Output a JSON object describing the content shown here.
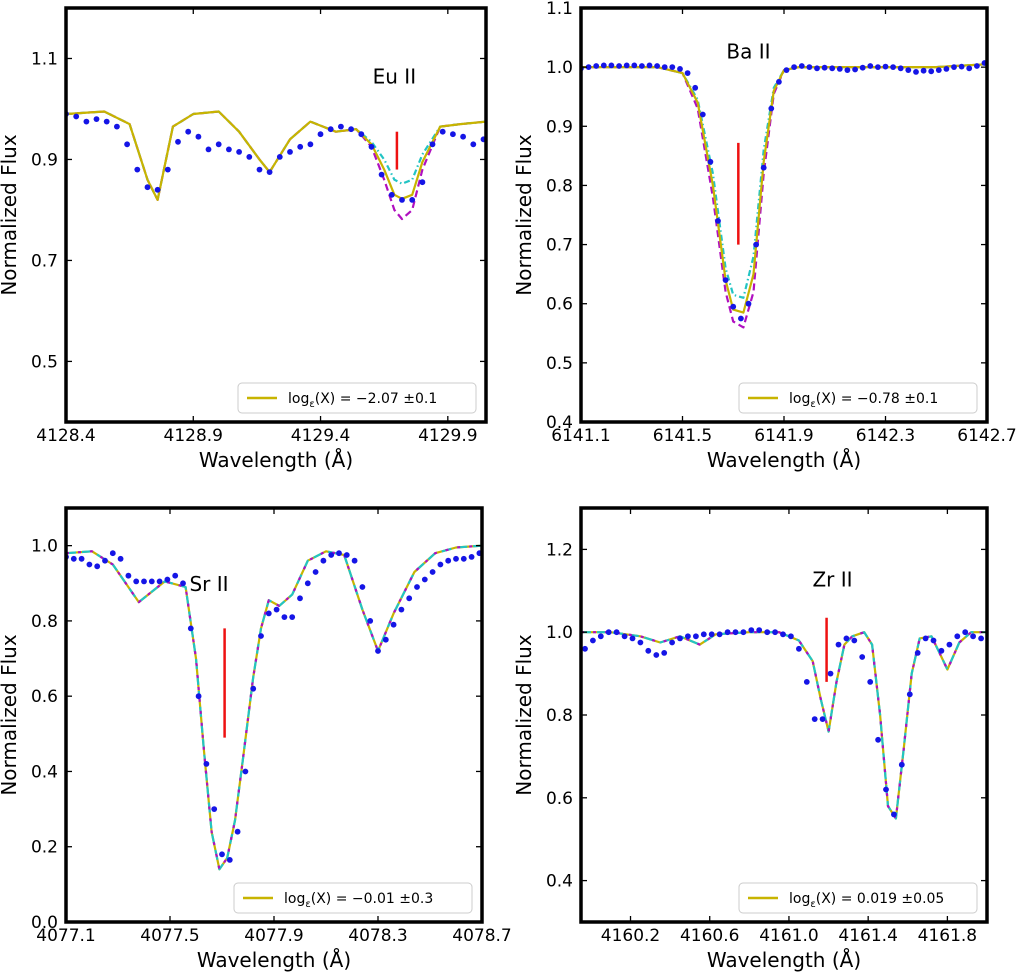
{
  "colors": {
    "obs": "#1515e6",
    "fit": "#c8b400",
    "upper": "#22c4c4",
    "lower": "#b010c0",
    "marker": "#ee1111"
  },
  "chart_data": [
    {
      "type": "line",
      "element_label": "Eu II",
      "xlabel": "Wavelength (Å)",
      "ylabel": "Normalized Flux",
      "xlim": [
        4128.4,
        4130.05
      ],
      "ylim": [
        0.38,
        1.2
      ],
      "xticks": [
        "4128.4",
        "4128.9",
        "4129.4",
        "4129.9"
      ],
      "xtick_values": [
        4128.4,
        4128.9,
        4129.4,
        4129.9
      ],
      "yticks": [
        "0.5",
        "0.7",
        "0.9",
        "1.1"
      ],
      "ytick_values": [
        0.5,
        0.7,
        0.9,
        1.1
      ],
      "legend": {
        "prefix": "log",
        "sub": "ε",
        "rest": "(X) = −2.07 ±0.1"
      },
      "line_marker": {
        "x": 4129.7,
        "y": [
          0.88,
          0.955
        ]
      },
      "model": {
        "x": [
          4128.4,
          4128.55,
          4128.65,
          4128.72,
          4128.76,
          4128.82,
          4128.9,
          4129.0,
          4129.08,
          4129.16,
          4129.2,
          4129.28,
          4129.36,
          4129.46,
          4129.54,
          4129.6,
          4129.65,
          4129.69,
          4129.72,
          4129.76,
          4129.8,
          4129.87,
          4129.95,
          4130.05
        ],
        "fit": [
          0.99,
          0.995,
          0.97,
          0.86,
          0.82,
          0.965,
          0.99,
          0.995,
          0.955,
          0.9,
          0.875,
          0.94,
          0.975,
          0.955,
          0.96,
          0.93,
          0.88,
          0.83,
          0.822,
          0.83,
          0.895,
          0.965,
          0.97,
          0.975
        ],
        "upper": [
          0.99,
          0.995,
          0.97,
          0.86,
          0.82,
          0.965,
          0.99,
          0.995,
          0.955,
          0.9,
          0.875,
          0.94,
          0.975,
          0.955,
          0.96,
          0.935,
          0.9,
          0.86,
          0.852,
          0.86,
          0.91,
          0.965,
          0.97,
          0.975
        ],
        "lower": [
          0.99,
          0.995,
          0.97,
          0.86,
          0.82,
          0.965,
          0.99,
          0.995,
          0.955,
          0.9,
          0.875,
          0.94,
          0.975,
          0.955,
          0.96,
          0.925,
          0.86,
          0.8,
          0.782,
          0.8,
          0.88,
          0.965,
          0.97,
          0.975
        ]
      },
      "observed": {
        "x": [
          4128.4,
          4128.44,
          4128.48,
          4128.52,
          4128.56,
          4128.6,
          4128.64,
          4128.68,
          4128.72,
          4128.76,
          4128.8,
          4128.84,
          4128.88,
          4128.92,
          4128.96,
          4129.0,
          4129.04,
          4129.08,
          4129.12,
          4129.16,
          4129.2,
          4129.24,
          4129.28,
          4129.32,
          4129.36,
          4129.4,
          4129.44,
          4129.48,
          4129.52,
          4129.56,
          4129.6,
          4129.64,
          4129.68,
          4129.72,
          4129.76,
          4129.8,
          4129.84,
          4129.88,
          4129.92,
          4129.96,
          4130.0,
          4130.04
        ],
        "y": [
          0.99,
          0.985,
          0.975,
          0.98,
          0.975,
          0.965,
          0.93,
          0.88,
          0.845,
          0.84,
          0.88,
          0.935,
          0.955,
          0.945,
          0.92,
          0.93,
          0.92,
          0.915,
          0.905,
          0.88,
          0.875,
          0.905,
          0.915,
          0.925,
          0.93,
          0.95,
          0.96,
          0.965,
          0.96,
          0.95,
          0.925,
          0.87,
          0.83,
          0.82,
          0.82,
          0.855,
          0.93,
          0.955,
          0.95,
          0.945,
          0.93,
          0.94
        ]
      }
    },
    {
      "type": "line",
      "element_label": "Ba II",
      "xlabel": "Wavelength (Å)",
      "ylabel": "Normalized Flux",
      "xlim": [
        6141.1,
        6142.7
      ],
      "ylim": [
        0.4,
        1.1
      ],
      "xticks": [
        "6141.1",
        "6141.5",
        "6141.9",
        "6142.3",
        "6142.7"
      ],
      "xtick_values": [
        6141.1,
        6141.5,
        6141.9,
        6142.3,
        6142.7
      ],
      "yticks": [
        "0.4",
        "0.5",
        "0.6",
        "0.7",
        "0.8",
        "0.9",
        "1.0",
        "1.1"
      ],
      "ytick_values": [
        0.4,
        0.5,
        0.6,
        0.7,
        0.8,
        0.9,
        1.0,
        1.1
      ],
      "legend": {
        "prefix": "log",
        "sub": "ε",
        "rest": "(X) = −0.78 ±0.1"
      },
      "line_marker": {
        "x": 6141.72,
        "y": [
          0.7,
          0.872
        ]
      },
      "model": {
        "x": [
          6141.1,
          6141.4,
          6141.5,
          6141.56,
          6141.62,
          6141.67,
          6141.7,
          6141.74,
          6141.78,
          6141.82,
          6141.86,
          6141.9,
          6141.96,
          6142.2,
          6142.5,
          6142.7
        ],
        "fit": [
          1.0,
          1.0,
          0.99,
          0.94,
          0.8,
          0.64,
          0.59,
          0.585,
          0.65,
          0.84,
          0.96,
          0.995,
          1.0,
          1.0,
          1.0,
          1.005
        ],
        "upper": [
          1.0,
          1.0,
          0.99,
          0.945,
          0.82,
          0.66,
          0.615,
          0.61,
          0.68,
          0.86,
          0.965,
          0.995,
          1.0,
          1.0,
          1.0,
          1.005
        ],
        "lower": [
          1.0,
          1.0,
          0.99,
          0.93,
          0.78,
          0.62,
          0.57,
          0.56,
          0.62,
          0.82,
          0.955,
          0.995,
          1.0,
          1.0,
          1.0,
          1.005
        ]
      },
      "observed": {
        "x": [
          6141.1,
          6141.13,
          6141.16,
          6141.19,
          6141.22,
          6141.25,
          6141.28,
          6141.31,
          6141.34,
          6141.37,
          6141.4,
          6141.43,
          6141.46,
          6141.49,
          6141.52,
          6141.55,
          6141.58,
          6141.61,
          6141.64,
          6141.67,
          6141.7,
          6141.73,
          6141.76,
          6141.79,
          6141.82,
          6141.85,
          6141.88,
          6141.91,
          6141.94,
          6141.97,
          6142.0,
          6142.03,
          6142.06,
          6142.09,
          6142.12,
          6142.15,
          6142.18,
          6142.21,
          6142.24,
          6142.27,
          6142.3,
          6142.33,
          6142.36,
          6142.39,
          6142.42,
          6142.45,
          6142.48,
          6142.51,
          6142.54,
          6142.57,
          6142.6,
          6142.63,
          6142.66,
          6142.69
        ],
        "y": [
          0.998,
          1.0,
          1.002,
          1.003,
          1.003,
          1.002,
          1.003,
          1.003,
          1.002,
          1.003,
          1.002,
          1.0,
          1.0,
          0.997,
          0.99,
          0.965,
          0.92,
          0.84,
          0.74,
          0.64,
          0.595,
          0.575,
          0.6,
          0.7,
          0.83,
          0.93,
          0.975,
          0.995,
          1.0,
          1.002,
          1.0,
          0.998,
          0.999,
          0.998,
          0.997,
          0.995,
          0.996,
          0.999,
          1.002,
          1.0,
          1.001,
          1.0,
          0.998,
          0.995,
          0.992,
          0.994,
          0.993,
          0.995,
          0.997,
          1.0,
          1.001,
          0.998,
          1.002,
          1.007
        ]
      }
    },
    {
      "type": "line",
      "element_label": "Sr II",
      "xlabel": "Wavelength (Å)",
      "ylabel": "Normalized Flux",
      "xlim": [
        4077.1,
        4078.7
      ],
      "ylim": [
        0.0,
        1.1
      ],
      "xticks": [
        "4077.1",
        "4077.5",
        "4077.9",
        "4078.3",
        "4078.7"
      ],
      "xtick_values": [
        4077.1,
        4077.5,
        4077.9,
        4078.3,
        4078.7
      ],
      "yticks": [
        "0.0",
        "0.2",
        "0.4",
        "0.6",
        "0.8",
        "1.0"
      ],
      "ytick_values": [
        0.0,
        0.2,
        0.4,
        0.6,
        0.8,
        1.0
      ],
      "legend": {
        "prefix": "log",
        "sub": "ε",
        "rest": "(X) = −0.01 ±0.3"
      },
      "line_marker": {
        "x": 4077.71,
        "y": [
          0.49,
          0.78
        ]
      },
      "model": {
        "x": [
          4077.1,
          4077.2,
          4077.28,
          4077.38,
          4077.48,
          4077.56,
          4077.6,
          4077.63,
          4077.66,
          4077.69,
          4077.72,
          4077.75,
          4077.78,
          4077.82,
          4077.85,
          4077.88,
          4077.92,
          4077.97,
          4078.03,
          4078.1,
          4078.17,
          4078.24,
          4078.3,
          4078.36,
          4078.44,
          4078.52,
          4078.6,
          4078.7
        ],
        "fit": [
          0.98,
          0.985,
          0.95,
          0.85,
          0.905,
          0.89,
          0.7,
          0.46,
          0.24,
          0.14,
          0.17,
          0.27,
          0.43,
          0.65,
          0.78,
          0.855,
          0.84,
          0.87,
          0.96,
          0.985,
          0.975,
          0.83,
          0.72,
          0.82,
          0.93,
          0.98,
          0.995,
          1.0
        ]
      },
      "observed": {
        "x": [
          4077.1,
          4077.13,
          4077.16,
          4077.19,
          4077.22,
          4077.25,
          4077.28,
          4077.31,
          4077.34,
          4077.37,
          4077.4,
          4077.43,
          4077.46,
          4077.49,
          4077.52,
          4077.55,
          4077.58,
          4077.61,
          4077.64,
          4077.67,
          4077.7,
          4077.73,
          4077.76,
          4077.79,
          4077.82,
          4077.85,
          4077.88,
          4077.91,
          4077.94,
          4077.97,
          4078.0,
          4078.03,
          4078.06,
          4078.09,
          4078.12,
          4078.15,
          4078.18,
          4078.21,
          4078.24,
          4078.27,
          4078.3,
          4078.33,
          4078.36,
          4078.39,
          4078.42,
          4078.45,
          4078.48,
          4078.51,
          4078.54,
          4078.57,
          4078.6,
          4078.63,
          4078.66,
          4078.69
        ],
        "y": [
          0.97,
          0.965,
          0.965,
          0.95,
          0.945,
          0.96,
          0.98,
          0.965,
          0.92,
          0.905,
          0.905,
          0.905,
          0.905,
          0.91,
          0.92,
          0.9,
          0.78,
          0.6,
          0.42,
          0.3,
          0.18,
          0.165,
          0.24,
          0.4,
          0.62,
          0.76,
          0.82,
          0.83,
          0.81,
          0.81,
          0.86,
          0.9,
          0.93,
          0.96,
          0.975,
          0.98,
          0.975,
          0.96,
          0.89,
          0.8,
          0.72,
          0.75,
          0.79,
          0.83,
          0.86,
          0.89,
          0.91,
          0.93,
          0.95,
          0.96,
          0.965,
          0.965,
          0.97,
          0.98
        ]
      }
    },
    {
      "type": "line",
      "element_label": "Zr II",
      "xlabel": "Wavelength (Å)",
      "ylabel": "Normalized Flux",
      "xlim": [
        4159.95,
        4162.0
      ],
      "ylim": [
        0.3,
        1.3
      ],
      "xticks": [
        "4160.2",
        "4160.6",
        "4161.0",
        "4161.4",
        "4161.8"
      ],
      "xtick_values": [
        4160.2,
        4160.6,
        4161.0,
        4161.4,
        4161.8
      ],
      "yticks": [
        "0.4",
        "0.6",
        "0.8",
        "1.0",
        "1.2"
      ],
      "ytick_values": [
        0.4,
        0.6,
        0.8,
        1.0,
        1.2
      ],
      "legend": {
        "prefix": "log",
        "sub": "ε",
        "rest": "(X) = 0.019 ±0.05"
      },
      "line_marker": {
        "x": 4161.19,
        "y": [
          0.88,
          1.035
        ]
      },
      "model": {
        "x": [
          4159.95,
          4160.1,
          4160.25,
          4160.35,
          4160.45,
          4160.55,
          4160.63,
          4160.8,
          4160.95,
          4161.05,
          4161.12,
          4161.16,
          4161.2,
          4161.24,
          4161.28,
          4161.32,
          4161.38,
          4161.42,
          4161.46,
          4161.5,
          4161.54,
          4161.58,
          4161.62,
          4161.66,
          4161.72,
          4161.76,
          4161.8,
          4161.86,
          4161.92,
          4162.0
        ],
        "fit": [
          1.0,
          1.0,
          0.99,
          0.975,
          0.99,
          0.97,
          0.995,
          1.0,
          1.0,
          0.98,
          0.93,
          0.84,
          0.76,
          0.88,
          0.97,
          0.99,
          1.0,
          0.97,
          0.8,
          0.58,
          0.55,
          0.72,
          0.9,
          0.985,
          0.99,
          0.95,
          0.91,
          0.975,
          1.0,
          1.0
        ]
      },
      "observed": {
        "x": [
          4159.97,
          4160.01,
          4160.05,
          4160.09,
          4160.13,
          4160.17,
          4160.21,
          4160.25,
          4160.29,
          4160.33,
          4160.37,
          4160.41,
          4160.45,
          4160.49,
          4160.53,
          4160.57,
          4160.61,
          4160.65,
          4160.69,
          4160.73,
          4160.77,
          4160.81,
          4160.85,
          4160.89,
          4160.93,
          4160.97,
          4161.01,
          4161.05,
          4161.09,
          4161.13,
          4161.17,
          4161.21,
          4161.25,
          4161.29,
          4161.33,
          4161.37,
          4161.41,
          4161.45,
          4161.49,
          4161.53,
          4161.57,
          4161.61,
          4161.65,
          4161.69,
          4161.73,
          4161.77,
          4161.81,
          4161.85,
          4161.89,
          4161.93,
          4161.97
        ],
        "y": [
          0.96,
          0.98,
          0.99,
          1.0,
          1.0,
          0.99,
          0.985,
          0.975,
          0.955,
          0.945,
          0.95,
          0.975,
          0.985,
          0.99,
          0.99,
          0.995,
          0.995,
          0.995,
          1.0,
          1.0,
          1.0,
          1.005,
          1.005,
          1.0,
          1.0,
          0.995,
          0.99,
          0.96,
          0.88,
          0.79,
          0.79,
          0.9,
          0.97,
          0.985,
          0.98,
          0.94,
          0.88,
          0.74,
          0.62,
          0.56,
          0.68,
          0.85,
          0.95,
          0.985,
          0.98,
          0.955,
          0.97,
          0.99,
          1.0,
          0.99,
          0.985
        ]
      }
    }
  ]
}
